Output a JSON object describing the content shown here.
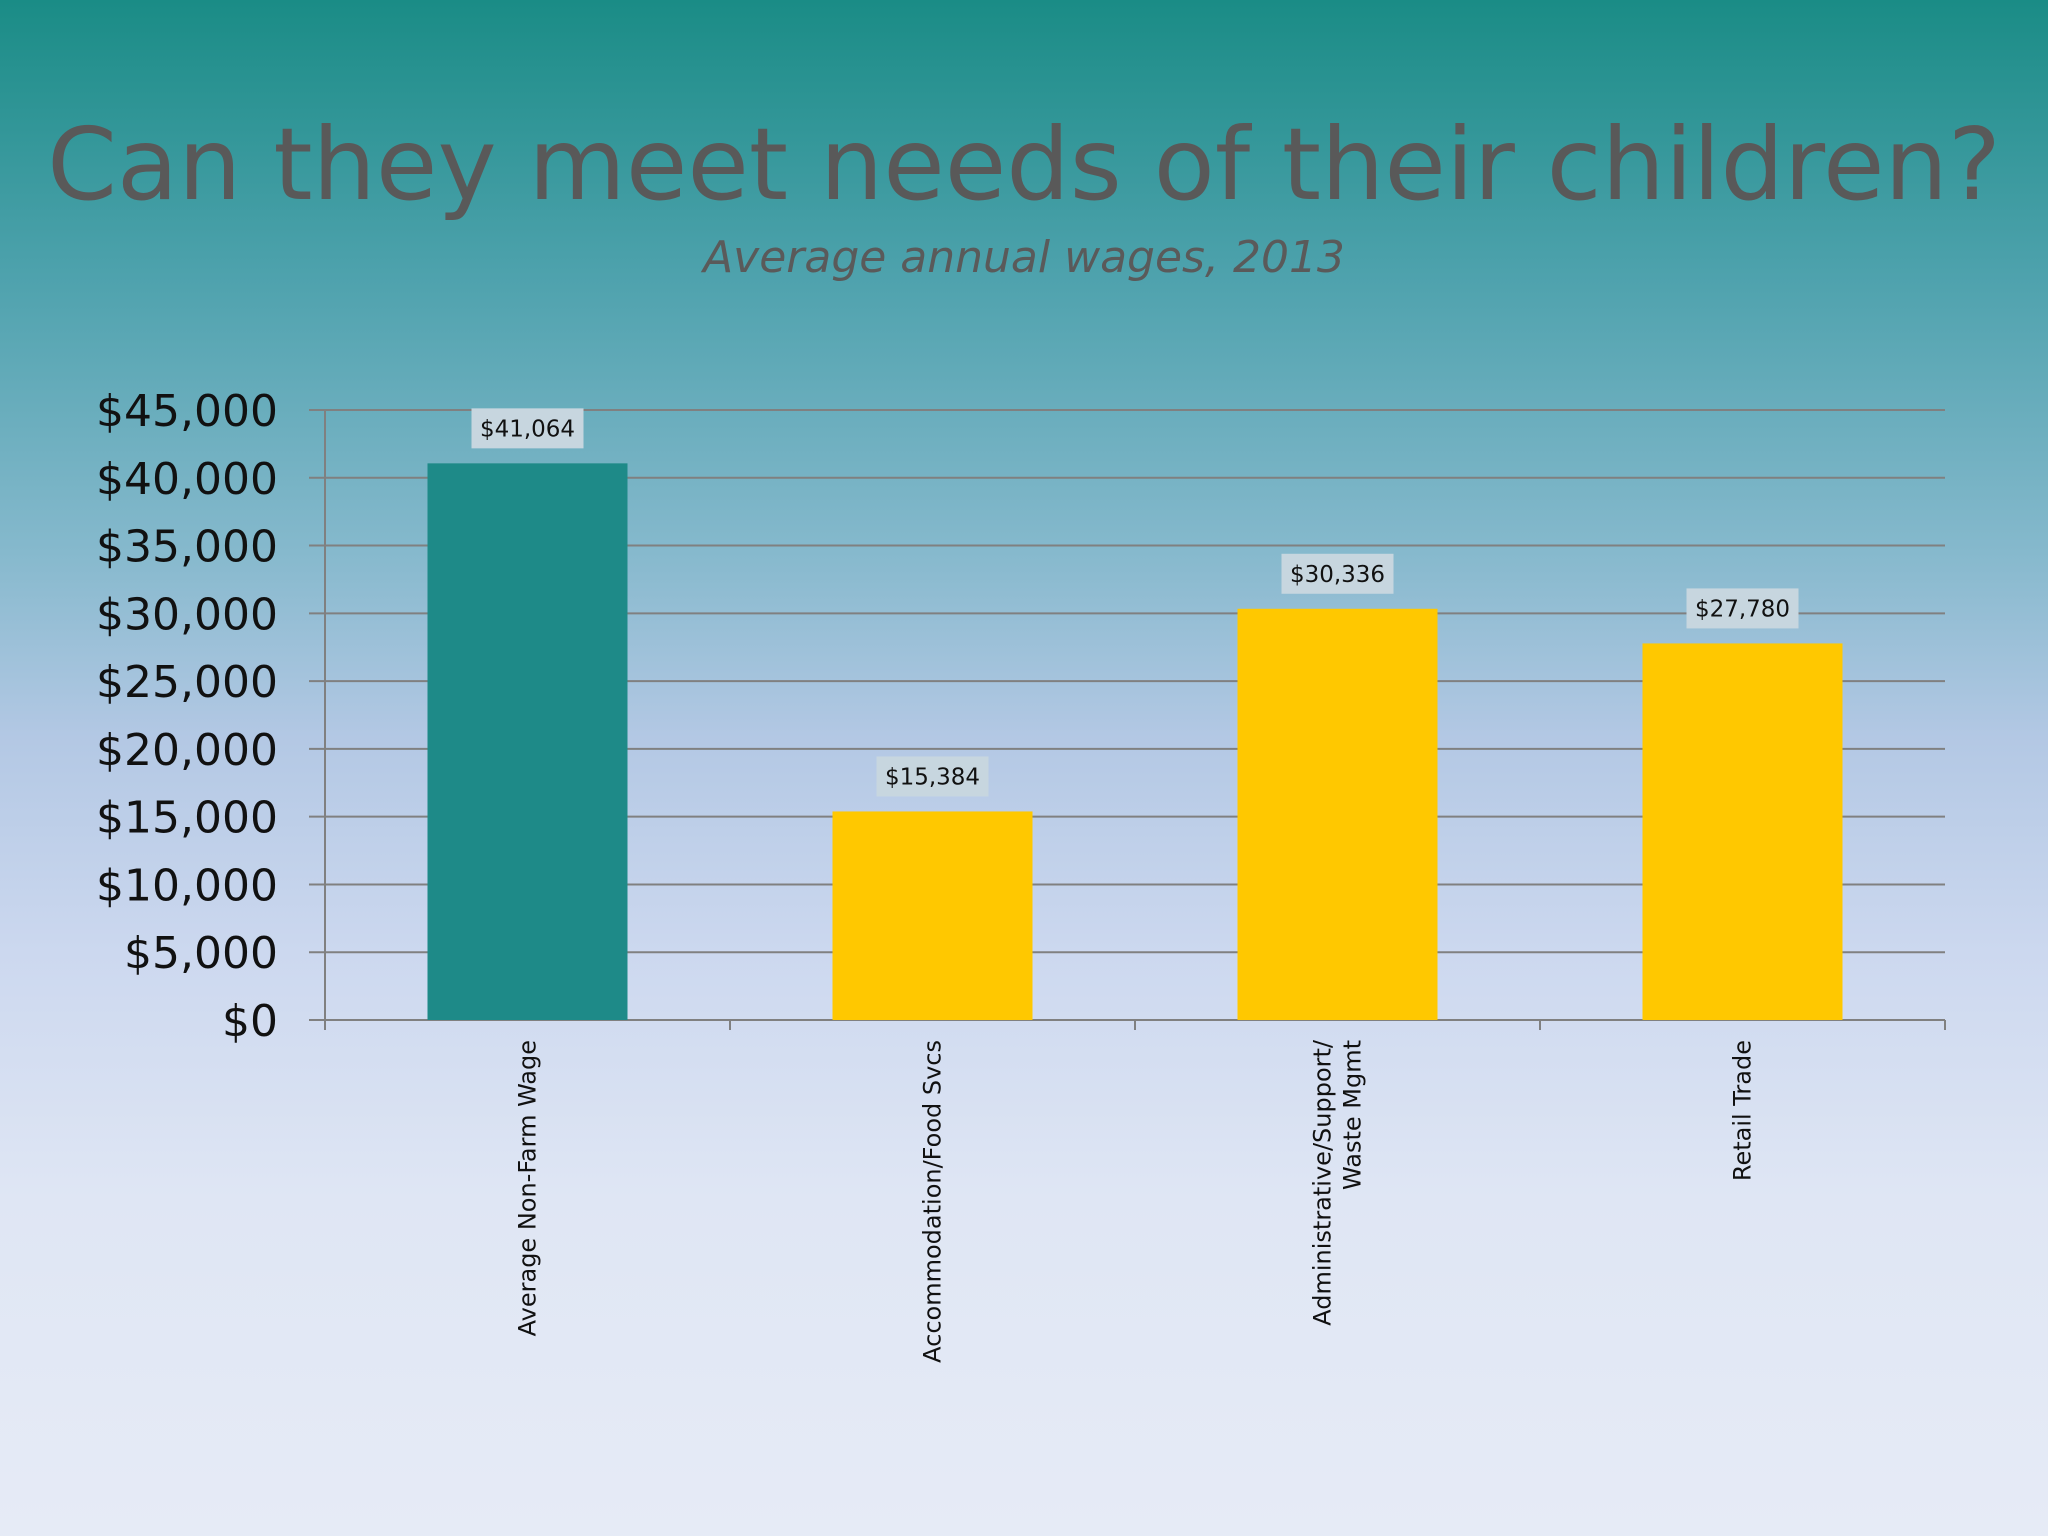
{
  "slide": {
    "title": "Can they meet needs of their children?",
    "subtitle": "Average annual wages, 2013"
  },
  "colors": {
    "highlight_bar": "#1e8a88",
    "other_bar": "#ffc800",
    "gridline": "#808080",
    "label_box": "#c7d6df"
  },
  "chart_data": {
    "type": "bar",
    "title": "",
    "xlabel": "",
    "ylabel": "",
    "ylim": [
      0,
      45000
    ],
    "grid": true,
    "y_ticks": [
      0,
      5000,
      10000,
      15000,
      20000,
      25000,
      30000,
      35000,
      40000,
      45000
    ],
    "y_tick_labels": [
      "$0",
      "$5,000",
      "$10,000",
      "$15,000",
      "$20,000",
      "$25,000",
      "$30,000",
      "$35,000",
      "$40,000",
      "$45,000"
    ],
    "categories": [
      [
        "Average Non-Farm Wage"
      ],
      [
        "Accommodation/Food Svcs"
      ],
      [
        "Administrative/Support/",
        "Waste Mgmt"
      ],
      [
        "Retail Trade"
      ]
    ],
    "values": [
      41064,
      15384,
      30336,
      27780
    ],
    "data_labels": [
      "$41,064",
      "$15,384",
      "$30,336",
      "$27,780"
    ],
    "bar_colors": [
      "#1e8a88",
      "#ffc800",
      "#ffc800",
      "#ffc800"
    ]
  }
}
